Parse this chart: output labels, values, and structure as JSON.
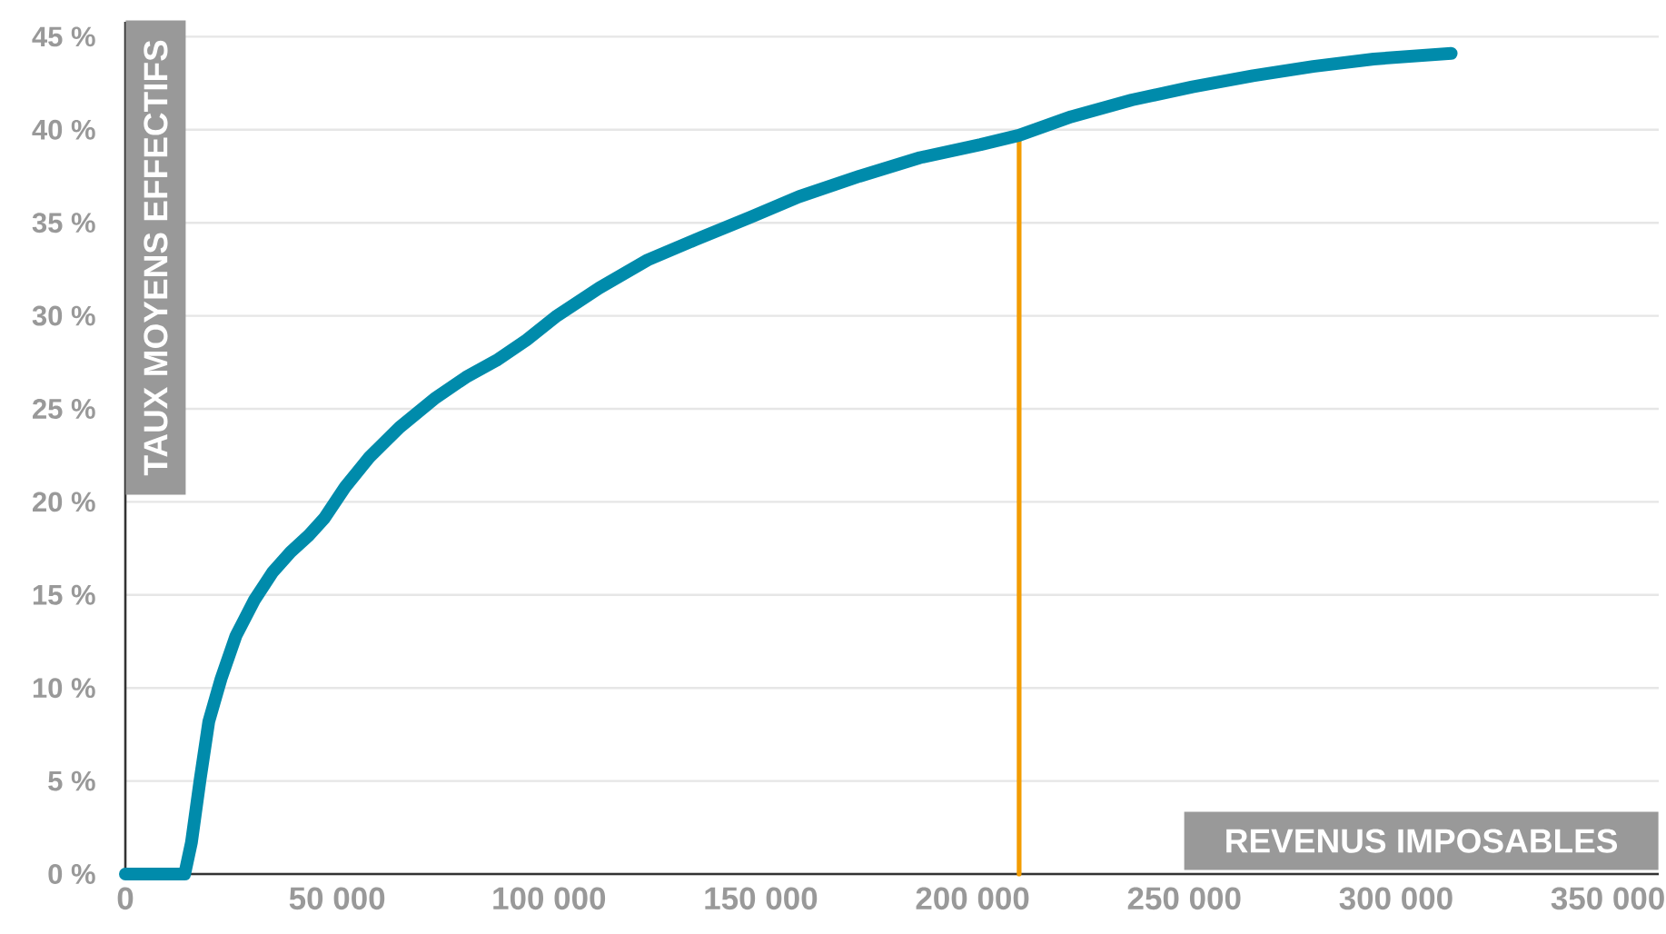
{
  "chart_data": {
    "type": "line",
    "xlabel": "REVENUS IMPOSABLES",
    "ylabel": "TAUX MOYENS EFFECTIFS",
    "xlim": [
      0,
      362000
    ],
    "ylim": [
      0,
      45.8
    ],
    "xticks": [
      0,
      {
        "value": 50000,
        "label": "50 000"
      },
      {
        "value": 100000,
        "label": "100 000"
      },
      {
        "value": 150000,
        "label": "150 000"
      },
      {
        "value": 200000,
        "label": "200 000"
      },
      {
        "value": 250000,
        "label": "250 000"
      },
      {
        "value": 300000,
        "label": "300 000"
      },
      {
        "value": 350000,
        "label": "350 000"
      }
    ],
    "yticks": [
      {
        "value": 0,
        "label": "0 %"
      },
      {
        "value": 5,
        "label": "5 %"
      },
      {
        "value": 10,
        "label": "10 %"
      },
      {
        "value": 15,
        "label": "15 %"
      },
      {
        "value": 20,
        "label": "20 %"
      },
      {
        "value": 25,
        "label": "25 %"
      },
      {
        "value": 30,
        "label": "30 %"
      },
      {
        "value": 35,
        "label": "35 %"
      },
      {
        "value": 40,
        "label": "40 %"
      },
      {
        "value": 45,
        "label": "45 %"
      }
    ],
    "grid": "y",
    "marker": "none",
    "line_style": "solid",
    "series": [
      {
        "color": "#008bab",
        "x": [
          0,
          14000,
          15600,
          17600,
          19700,
          22600,
          26100,
          30400,
          34700,
          39000,
          43300,
          46900,
          51900,
          57600,
          64700,
          73300,
          80400,
          87600,
          94700,
          101900,
          111900,
          123300,
          134700,
          147600,
          159000,
          173300,
          187600,
          201900,
          211000,
          223300,
          237600,
          251900,
          266200,
          280400,
          294700,
          313000
        ],
        "values": [
          0,
          0,
          1.7,
          5.0,
          8.2,
          10.5,
          12.8,
          14.7,
          16.2,
          17.3,
          18.2,
          19.1,
          20.8,
          22.4,
          24.0,
          25.6,
          26.7,
          27.6,
          28.7,
          30.0,
          31.5,
          33.0,
          34.1,
          35.3,
          36.4,
          37.5,
          38.5,
          39.2,
          39.7,
          40.7,
          41.6,
          42.3,
          42.9,
          43.4,
          43.8,
          44.1
        ]
      },
      {
        "color": "#f39c00",
        "x": [
          211000,
          211000
        ],
        "values": [
          0,
          39.7
        ]
      }
    ]
  }
}
